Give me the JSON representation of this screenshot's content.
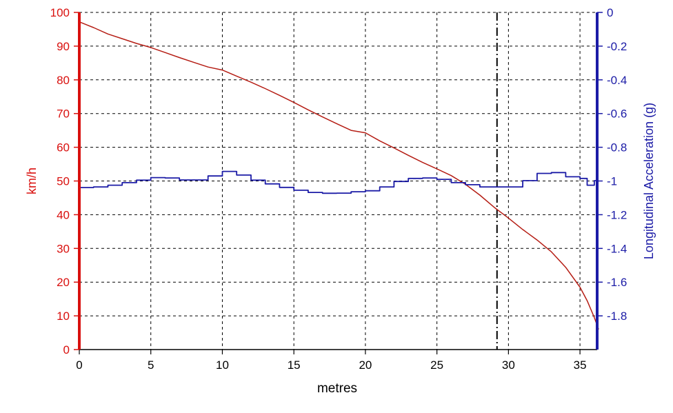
{
  "chart_data": {
    "type": "line",
    "title": "",
    "xlabel": "metres",
    "xlim": [
      0,
      36.2
    ],
    "x_ticks": [
      0,
      5,
      10,
      15,
      20,
      25,
      30,
      35
    ],
    "grid": true,
    "y_left": {
      "label": "km/h",
      "ylim": [
        0,
        100
      ],
      "ticks": [
        0,
        10,
        20,
        30,
        40,
        50,
        60,
        70,
        80,
        90,
        100
      ],
      "color": "#d9100e"
    },
    "y_right": {
      "label": "Longitudinal Acceleration (g)",
      "ylim": [
        -2,
        0
      ],
      "ticks": [
        0,
        -0.2,
        -0.4,
        -0.6,
        -0.8,
        -1,
        -1.2,
        -1.4,
        -1.6,
        -1.8
      ],
      "tick_labels": [
        "0",
        "-0.2",
        "-0.4",
        "-0.6",
        "-0.8",
        "-1",
        "-1.2",
        "-1.4",
        "-1.6",
        "-1.8"
      ],
      "color": "#1b1ba6"
    },
    "marker_line_x": 29.2,
    "series": [
      {
        "axis": "left",
        "color": "#b51d14",
        "points": [
          [
            0,
            97.2
          ],
          [
            1,
            95.5
          ],
          [
            2,
            93.6
          ],
          [
            3,
            92.2
          ],
          [
            4,
            90.8
          ],
          [
            5,
            89.6
          ],
          [
            6,
            88.1
          ],
          [
            7,
            86.6
          ],
          [
            8,
            85.2
          ],
          [
            9,
            83.8
          ],
          [
            10,
            82.9
          ],
          [
            11,
            81.1
          ],
          [
            12,
            79.3
          ],
          [
            13,
            77.4
          ],
          [
            14,
            75.4
          ],
          [
            15,
            73.3
          ],
          [
            16,
            71.1
          ],
          [
            17,
            69.0
          ],
          [
            18,
            67.0
          ],
          [
            19,
            65.0
          ],
          [
            20,
            64.3
          ],
          [
            21,
            61.9
          ],
          [
            22,
            59.8
          ],
          [
            23,
            57.6
          ],
          [
            24,
            55.5
          ],
          [
            25,
            53.6
          ],
          [
            26,
            51.6
          ],
          [
            27,
            49.0
          ],
          [
            28,
            45.8
          ],
          [
            29,
            42.2
          ],
          [
            30,
            39.0
          ],
          [
            31,
            35.6
          ],
          [
            32,
            32.5
          ],
          [
            33,
            29.0
          ],
          [
            34,
            24.4
          ],
          [
            35,
            18.5
          ],
          [
            35.5,
            14.5
          ],
          [
            36,
            9.5
          ],
          [
            36.3,
            6.0
          ]
        ]
      },
      {
        "axis": "right",
        "color": "#1b1ba6",
        "points": [
          [
            0,
            -1.039
          ],
          [
            1,
            -1.035
          ],
          [
            2,
            -1.025
          ],
          [
            3,
            -1.01
          ],
          [
            4,
            -0.995
          ],
          [
            5,
            -0.98
          ],
          [
            6,
            -0.982
          ],
          [
            7,
            -0.994
          ],
          [
            8,
            -0.994
          ],
          [
            9,
            -0.97
          ],
          [
            10,
            -0.943
          ],
          [
            11,
            -0.965
          ],
          [
            12,
            -0.995
          ],
          [
            13,
            -1.017
          ],
          [
            14,
            -1.038
          ],
          [
            15,
            -1.055
          ],
          [
            16,
            -1.068
          ],
          [
            17,
            -1.073
          ],
          [
            18,
            -1.072
          ],
          [
            19,
            -1.064
          ],
          [
            20,
            -1.058
          ],
          [
            21,
            -1.035
          ],
          [
            22,
            -1.003
          ],
          [
            23,
            -0.985
          ],
          [
            24,
            -0.982
          ],
          [
            25,
            -0.99
          ],
          [
            26,
            -1.01
          ],
          [
            27,
            -1.022
          ],
          [
            28,
            -1.035
          ],
          [
            29,
            -1.035
          ],
          [
            30,
            -1.035
          ],
          [
            31,
            -0.998
          ],
          [
            32,
            -0.955
          ],
          [
            33,
            -0.95
          ],
          [
            34,
            -0.975
          ],
          [
            35,
            -0.985
          ],
          [
            35.5,
            -1.025
          ],
          [
            36,
            -0.998
          ],
          [
            36.2,
            -1.035
          ]
        ]
      }
    ]
  }
}
